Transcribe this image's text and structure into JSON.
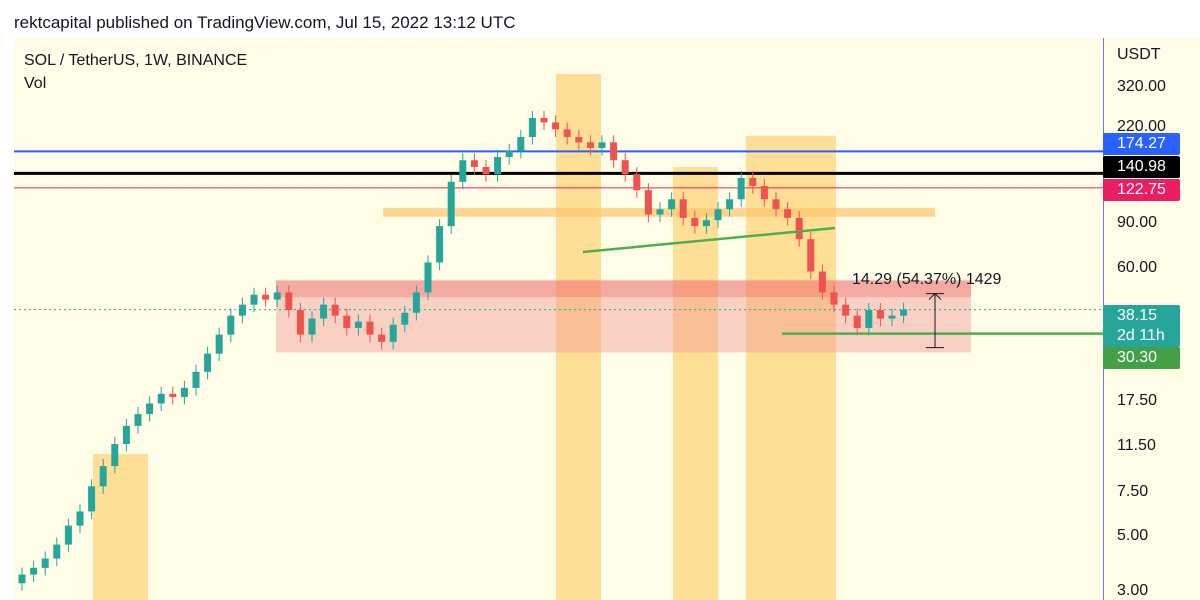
{
  "header": {
    "text": "rektcapital published on TradingView.com, Jul 15, 2022 13:12 UTC"
  },
  "legend": {
    "symbol": "SOL / TetherUS, 1W, BINANCE",
    "volume": "Vol"
  },
  "measure_label": "14.29 (54.37%) 1429",
  "price_scale": {
    "unit": "USDT",
    "ticks": [
      "320.00",
      "220.00",
      "90.00",
      "60.00",
      "17.50",
      "11.50",
      "7.50",
      "5.00",
      "3.00"
    ]
  },
  "price_tags": [
    {
      "label": "174.27",
      "color": "#2962ff"
    },
    {
      "label": "140.98",
      "color": "#000000"
    },
    {
      "label": "122.75",
      "color": "#e91e63"
    },
    {
      "label": "38.15",
      "color": "#26a69a"
    },
    {
      "label": "2d 11h",
      "color": "#26a69a"
    },
    {
      "label": "30.30",
      "color": "#43a047"
    }
  ],
  "colors": {
    "background": "#fffde7",
    "up": "#26a69a",
    "down": "#ef5350",
    "highlight": "#ffd37a",
    "zone": "#ef9a9a",
    "resistance_blue": "#2962ff",
    "resistance_black": "#000000",
    "resistance_red": "#e91e63",
    "support_green": "#4caf50"
  },
  "chart_data": {
    "type": "candlestick",
    "title": "SOL / TetherUS, 1W, BINANCE",
    "y_scale": "log",
    "y_unit": "USDT",
    "y_ticks": [
      320,
      220,
      90,
      60,
      17.5,
      11.5,
      7.5,
      5,
      3
    ],
    "horizontal_levels": [
      174.27,
      140.98,
      122.75,
      30.3
    ],
    "last_price": 38.15,
    "countdown": "2d 11h",
    "measurement": {
      "change": 14.29,
      "percent": 54.37,
      "ticks": 1429
    },
    "closes_approx": [
      3.0,
      3.2,
      3.5,
      4.0,
      4.8,
      5.5,
      7.0,
      8.5,
      10.5,
      12.5,
      14.0,
      15.5,
      17.0,
      16.5,
      18.0,
      21.0,
      25.0,
      30.0,
      36.0,
      40.0,
      44.0,
      42.0,
      45.0,
      38.0,
      30.0,
      35.0,
      40.0,
      36.0,
      32.0,
      34.0,
      30.0,
      28.0,
      33.0,
      37.0,
      45.0,
      60.0,
      85.0,
      130.0,
      160.0,
      150.0,
      140.0,
      165.0,
      175.0,
      200.0,
      240.0,
      230.0,
      215.0,
      200.0,
      190.0,
      180.0,
      190.0,
      160.0,
      140.0,
      120.0,
      95.0,
      100.0,
      110.0,
      92.0,
      85.0,
      90.0,
      100.0,
      110.0,
      135.0,
      125.0,
      110.0,
      100.0,
      92.0,
      75.0,
      55.0,
      45.0,
      40.0,
      36.0,
      32.0,
      38.0,
      35.0,
      36.0,
      38.15
    ]
  }
}
